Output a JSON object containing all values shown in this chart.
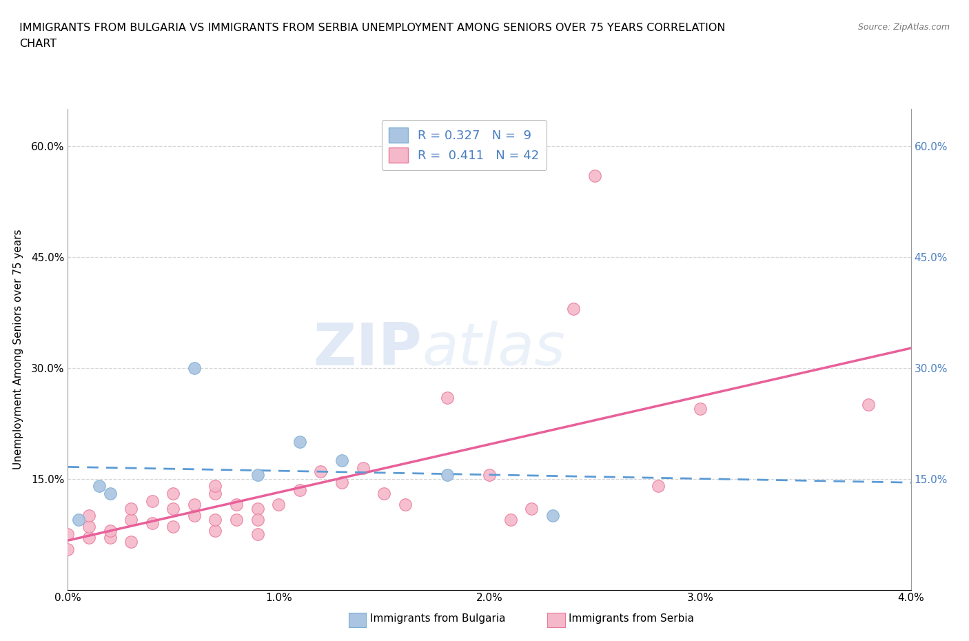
{
  "title_line1": "IMMIGRANTS FROM BULGARIA VS IMMIGRANTS FROM SERBIA UNEMPLOYMENT AMONG SENIORS OVER 75 YEARS CORRELATION",
  "title_line2": "CHART",
  "source": "Source: ZipAtlas.com",
  "ylabel": "Unemployment Among Seniors over 75 years",
  "xlim": [
    0.0,
    0.04
  ],
  "ylim": [
    0.0,
    0.65
  ],
  "xticks": [
    0.0,
    0.01,
    0.02,
    0.03,
    0.04
  ],
  "yticks": [
    0.0,
    0.15,
    0.3,
    0.45,
    0.6
  ],
  "xticklabels": [
    "0.0%",
    "1.0%",
    "2.0%",
    "3.0%",
    "4.0%"
  ],
  "yticklabels": [
    "",
    "15.0%",
    "30.0%",
    "45.0%",
    "60.0%"
  ],
  "right_yticklabels": [
    "",
    "15.0%",
    "30.0%",
    "45.0%",
    "60.0%"
  ],
  "grid_color": "#cccccc",
  "watermark_zip": "ZIP",
  "watermark_atlas": "atlas",
  "bulgaria_color": "#aac4e2",
  "serbia_color": "#f5b8ca",
  "bulgaria_edge": "#7bafd4",
  "serbia_edge": "#e87a9a",
  "line_blue": "#4a7fc1",
  "line_pink": "#e8609a",
  "line_blue_color": "#5b9bd5",
  "legend_R_bulgaria": "0.327",
  "legend_N_bulgaria": "9",
  "legend_R_serbia": "0.411",
  "legend_N_serbia": "42",
  "bulgaria_x": [
    0.0005,
    0.0015,
    0.002,
    0.006,
    0.009,
    0.011,
    0.013,
    0.018,
    0.023
  ],
  "bulgaria_y": [
    0.095,
    0.14,
    0.13,
    0.3,
    0.155,
    0.2,
    0.175,
    0.155,
    0.1
  ],
  "serbia_x": [
    0.0,
    0.0,
    0.001,
    0.001,
    0.001,
    0.002,
    0.002,
    0.003,
    0.003,
    0.003,
    0.004,
    0.004,
    0.005,
    0.005,
    0.005,
    0.006,
    0.006,
    0.007,
    0.007,
    0.007,
    0.007,
    0.008,
    0.008,
    0.009,
    0.009,
    0.009,
    0.01,
    0.011,
    0.012,
    0.013,
    0.014,
    0.015,
    0.016,
    0.018,
    0.02,
    0.021,
    0.022,
    0.024,
    0.025,
    0.028,
    0.03,
    0.038
  ],
  "serbia_y": [
    0.055,
    0.075,
    0.07,
    0.085,
    0.1,
    0.07,
    0.08,
    0.065,
    0.095,
    0.11,
    0.09,
    0.12,
    0.085,
    0.11,
    0.13,
    0.1,
    0.115,
    0.08,
    0.095,
    0.13,
    0.14,
    0.095,
    0.115,
    0.075,
    0.11,
    0.095,
    0.115,
    0.135,
    0.16,
    0.145,
    0.165,
    0.13,
    0.115,
    0.26,
    0.155,
    0.095,
    0.11,
    0.38,
    0.56,
    0.14,
    0.245,
    0.25
  ],
  "bg_color": "#ffffff",
  "title_fontsize": 11.5,
  "axis_fontsize": 11,
  "tick_fontsize": 11,
  "right_tick_color": "#4a7fc1",
  "bottom_legend_bulgaria": "Immigrants from Bulgaria",
  "bottom_legend_serbia": "Immigrants from Serbia"
}
